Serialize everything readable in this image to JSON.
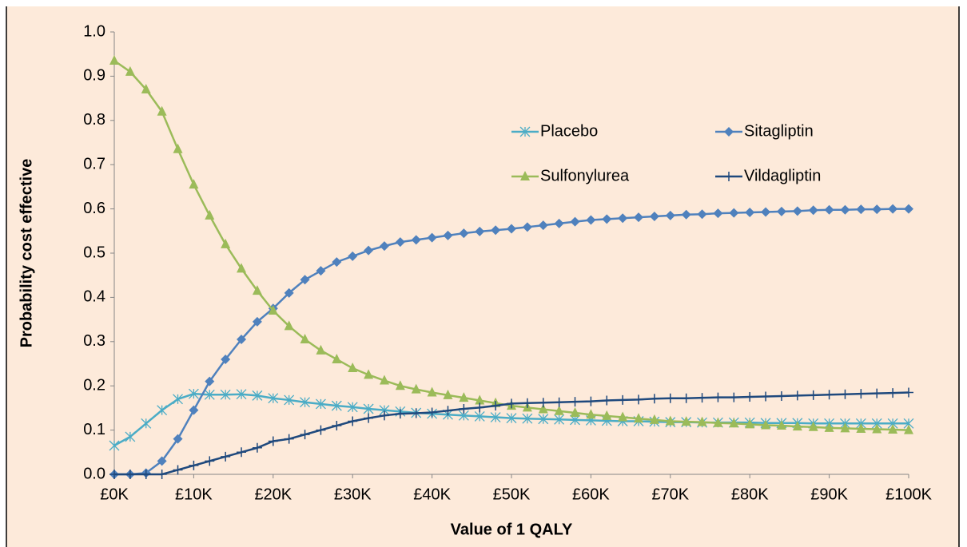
{
  "chart_data": {
    "type": "line",
    "xlabel": "Value of 1 QALY",
    "ylabel": "Probability cost effective",
    "x": [
      0,
      2000,
      4000,
      6000,
      8000,
      10000,
      12000,
      14000,
      16000,
      18000,
      20000,
      22000,
      24000,
      26000,
      28000,
      30000,
      32000,
      34000,
      36000,
      38000,
      40000,
      42000,
      44000,
      46000,
      48000,
      50000,
      52000,
      54000,
      56000,
      58000,
      60000,
      62000,
      64000,
      66000,
      68000,
      70000,
      72000,
      74000,
      76000,
      78000,
      80000,
      82000,
      84000,
      86000,
      88000,
      90000,
      92000,
      94000,
      96000,
      98000,
      100000
    ],
    "series": [
      {
        "name": "Placebo",
        "color": "#4bacc6",
        "marker": "star",
        "values": [
          0.065,
          0.085,
          0.115,
          0.145,
          0.17,
          0.182,
          0.18,
          0.18,
          0.181,
          0.178,
          0.172,
          0.168,
          0.163,
          0.159,
          0.155,
          0.152,
          0.148,
          0.145,
          0.142,
          0.139,
          0.137,
          0.135,
          0.133,
          0.131,
          0.129,
          0.127,
          0.126,
          0.125,
          0.124,
          0.123,
          0.122,
          0.121,
          0.12,
          0.12,
          0.119,
          0.118,
          0.118,
          0.117,
          0.117,
          0.117,
          0.117,
          0.116,
          0.116,
          0.116,
          0.115,
          0.115,
          0.115,
          0.115,
          0.115,
          0.115,
          0.115
        ]
      },
      {
        "name": "Sitagliptin",
        "color": "#4f81bd",
        "marker": "diamond",
        "values": [
          0,
          0,
          0.003,
          0.03,
          0.08,
          0.145,
          0.21,
          0.26,
          0.305,
          0.345,
          0.375,
          0.41,
          0.44,
          0.46,
          0.48,
          0.493,
          0.506,
          0.516,
          0.525,
          0.53,
          0.535,
          0.54,
          0.545,
          0.549,
          0.552,
          0.555,
          0.559,
          0.563,
          0.567,
          0.571,
          0.575,
          0.577,
          0.579,
          0.581,
          0.583,
          0.585,
          0.587,
          0.588,
          0.59,
          0.591,
          0.592,
          0.593,
          0.594,
          0.595,
          0.597,
          0.598,
          0.598,
          0.599,
          0.599,
          0.6,
          0.6
        ]
      },
      {
        "name": "Sulfonylurea",
        "color": "#9bbb59",
        "marker": "triangle",
        "values": [
          0.935,
          0.91,
          0.87,
          0.82,
          0.735,
          0.655,
          0.585,
          0.52,
          0.465,
          0.415,
          0.37,
          0.335,
          0.305,
          0.28,
          0.26,
          0.24,
          0.225,
          0.212,
          0.2,
          0.192,
          0.185,
          0.179,
          0.173,
          0.167,
          0.161,
          0.155,
          0.151,
          0.147,
          0.143,
          0.139,
          0.135,
          0.132,
          0.129,
          0.126,
          0.123,
          0.12,
          0.119,
          0.118,
          0.116,
          0.115,
          0.113,
          0.111,
          0.11,
          0.108,
          0.107,
          0.105,
          0.104,
          0.103,
          0.102,
          0.101,
          0.1
        ]
      },
      {
        "name": "Vildagliptin",
        "color": "#1f497d",
        "marker": "plus",
        "values": [
          0,
          0,
          0,
          0,
          0.01,
          0.02,
          0.03,
          0.04,
          0.05,
          0.06,
          0.075,
          0.08,
          0.09,
          0.1,
          0.11,
          0.12,
          0.127,
          0.133,
          0.137,
          0.138,
          0.14,
          0.144,
          0.148,
          0.151,
          0.155,
          0.16,
          0.161,
          0.162,
          0.163,
          0.164,
          0.165,
          0.167,
          0.168,
          0.169,
          0.171,
          0.172,
          0.172,
          0.173,
          0.174,
          0.174,
          0.175,
          0.176,
          0.177,
          0.178,
          0.179,
          0.18,
          0.181,
          0.182,
          0.183,
          0.184,
          0.185
        ]
      }
    ],
    "xlim": [
      0,
      100000
    ],
    "xticks": [
      {
        "value": 0,
        "label": "£0K"
      },
      {
        "value": 10000,
        "label": "£10K"
      },
      {
        "value": 20000,
        "label": "£20K"
      },
      {
        "value": 30000,
        "label": "£30K"
      },
      {
        "value": 40000,
        "label": "£40K"
      },
      {
        "value": 50000,
        "label": "£50K"
      },
      {
        "value": 60000,
        "label": "£60K"
      },
      {
        "value": 70000,
        "label": "£70K"
      },
      {
        "value": 80000,
        "label": "£80K"
      },
      {
        "value": 90000,
        "label": "£90K"
      },
      {
        "value": 100000,
        "label": "£100K"
      }
    ],
    "ylim": [
      0,
      1
    ],
    "yticks": [
      {
        "value": 0,
        "label": "0.0"
      },
      0.1,
      0.2,
      0.3,
      0.4,
      0.5,
      0.6,
      0.7,
      0.8,
      0.9,
      {
        "value": 1,
        "label": "1.0"
      }
    ],
    "grid": false,
    "legend": "center right"
  }
}
